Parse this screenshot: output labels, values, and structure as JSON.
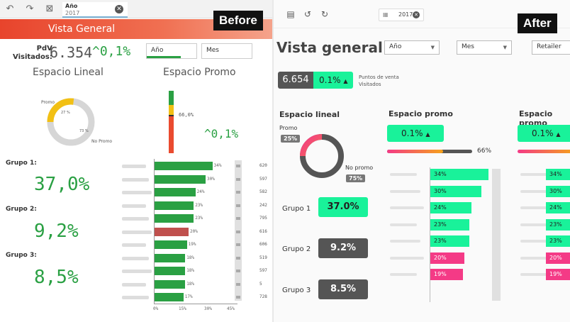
{
  "before": {
    "stamp": "Before",
    "toolbar": {
      "year_label": "Año",
      "year_value": "2017",
      "clear_glyph": "✕"
    },
    "header": {
      "title": "Vista General"
    },
    "kpi": {
      "label_line1": "PdV",
      "label_line2": "Visitados:",
      "value": "6.354",
      "change": "^0,1%"
    },
    "filters": {
      "year": "Año",
      "month": "Mes"
    },
    "espacio_lineal": {
      "title": "Espacio Lineal",
      "promo_label": "Promo",
      "promo_pct": "27 %",
      "nopromo_pct": "73 %",
      "nopromo_label": "No Promo",
      "promo_share": 27
    },
    "espacio_promo": {
      "title": "Espacio Promo",
      "gauge_label": "66,0%",
      "change": "^0,1%"
    },
    "groups": [
      {
        "label": "Grupo 1:",
        "value": "37,0%"
      },
      {
        "label": "Grupo 2:",
        "value": "9,2%"
      },
      {
        "label": "Grupo 3:",
        "value": "8,5%"
      }
    ],
    "bars": [
      {
        "value": 34,
        "label": "34%",
        "highlight": false,
        "right": "620"
      },
      {
        "value": 30,
        "label": "30%",
        "highlight": false,
        "right": "597"
      },
      {
        "value": 24,
        "label": "24%",
        "highlight": false,
        "right": "582"
      },
      {
        "value": 23,
        "label": "23%",
        "highlight": false,
        "right": "242"
      },
      {
        "value": 23,
        "label": "23%",
        "highlight": false,
        "right": "795"
      },
      {
        "value": 20,
        "label": "20%",
        "highlight": true,
        "right": "616"
      },
      {
        "value": 19,
        "label": "19%",
        "highlight": false,
        "right": "606"
      },
      {
        "value": 18,
        "label": "18%",
        "highlight": false,
        "right": "519"
      },
      {
        "value": 18,
        "label": "18%",
        "highlight": false,
        "right": "597"
      },
      {
        "value": 18,
        "label": "18%",
        "highlight": false,
        "right": "5"
      },
      {
        "value": 17,
        "label": "17%",
        "highlight": false,
        "right": "728"
      }
    ],
    "ticks": [
      "0%",
      "15%",
      "30%",
      "45%"
    ],
    "colors": {
      "green": "#2aa043",
      "red": "#c0504d",
      "orange_header": "#e8442c"
    }
  },
  "after": {
    "stamp": "After",
    "toolbar": {
      "year_value": "2017",
      "clear_glyph": "✕"
    },
    "title": "Vista general",
    "filters": {
      "year": "Año",
      "month": "Mes",
      "retailer": "Retailer"
    },
    "kpi": {
      "value": "6.654",
      "change": "0.1%",
      "note_line1": "Puntos de venta",
      "note_line2": "Visitados"
    },
    "espacio_lineal": {
      "title": "Espacio lineal",
      "promo_label": "Promo",
      "promo_pct": "25%",
      "nopromo_label": "No promo",
      "nopromo_pct": "75%",
      "promo_share": 25
    },
    "groups": [
      {
        "label": "Grupo 1",
        "value": "37.0%",
        "highlight": true
      },
      {
        "label": "Grupo 2",
        "value": "9.2%",
        "highlight": false
      },
      {
        "label": "Grupo 3",
        "value": "8.5%",
        "highlight": false
      }
    ],
    "espacio_promo": {
      "title": "Espacio promo",
      "change": "0.1%",
      "progress_label": "66%",
      "progress": 66
    },
    "espacio_promo_2": {
      "title": "Espacio promo",
      "change": "0.1%"
    },
    "bars": [
      {
        "value": 34,
        "label": "34%",
        "highlight": false
      },
      {
        "value": 30,
        "label": "30%",
        "highlight": false
      },
      {
        "value": 24,
        "label": "24%",
        "highlight": false
      },
      {
        "value": 23,
        "label": "23%",
        "highlight": false
      },
      {
        "value": 23,
        "label": "23%",
        "highlight": false
      },
      {
        "value": 20,
        "label": "20%",
        "highlight": true
      },
      {
        "value": 19,
        "label": "19%",
        "highlight": true
      }
    ],
    "colors": {
      "mint": "#19f29a",
      "pink": "#f43a86",
      "dark": "#555555"
    }
  }
}
